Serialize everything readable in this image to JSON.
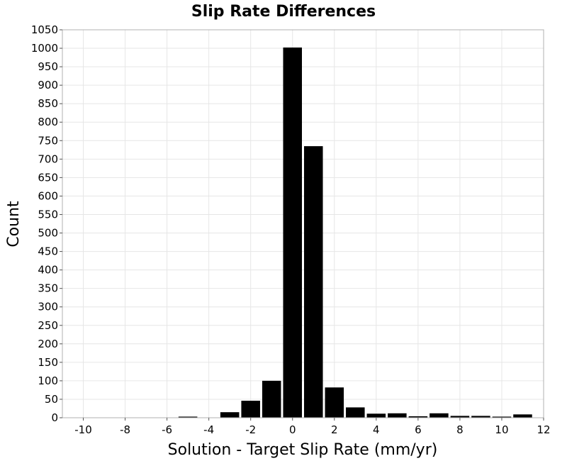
{
  "chart_data": {
    "type": "bar",
    "title": "Slip Rate Differences",
    "xlabel": "Solution - Target Slip Rate (mm/yr)",
    "ylabel": "Count",
    "xlim": [
      -11,
      12
    ],
    "ylim": [
      0,
      1050
    ],
    "xticks": [
      -10,
      -8,
      -6,
      -4,
      -2,
      0,
      2,
      4,
      6,
      8,
      10,
      12
    ],
    "yticks": [
      0,
      50,
      100,
      150,
      200,
      250,
      300,
      350,
      400,
      450,
      500,
      550,
      600,
      650,
      700,
      750,
      800,
      850,
      900,
      950,
      1000,
      1050
    ],
    "bin_width": 1,
    "bins": [
      {
        "x": -10,
        "count": 0
      },
      {
        "x": -9,
        "count": 0
      },
      {
        "x": -8,
        "count": 0
      },
      {
        "x": -7,
        "count": 0
      },
      {
        "x": -6,
        "count": 0
      },
      {
        "x": -5,
        "count": 3
      },
      {
        "x": -4,
        "count": 0
      },
      {
        "x": -3,
        "count": 15
      },
      {
        "x": -2,
        "count": 46
      },
      {
        "x": -1,
        "count": 100
      },
      {
        "x": 0,
        "count": 1002
      },
      {
        "x": 1,
        "count": 735
      },
      {
        "x": 2,
        "count": 82
      },
      {
        "x": 3,
        "count": 28
      },
      {
        "x": 4,
        "count": 11
      },
      {
        "x": 5,
        "count": 12
      },
      {
        "x": 6,
        "count": 4
      },
      {
        "x": 7,
        "count": 12
      },
      {
        "x": 8,
        "count": 5
      },
      {
        "x": 9,
        "count": 5
      },
      {
        "x": 10,
        "count": 3
      },
      {
        "x": 11,
        "count": 9
      }
    ],
    "bar_color": "#000000",
    "grid": true,
    "legend": "none"
  }
}
